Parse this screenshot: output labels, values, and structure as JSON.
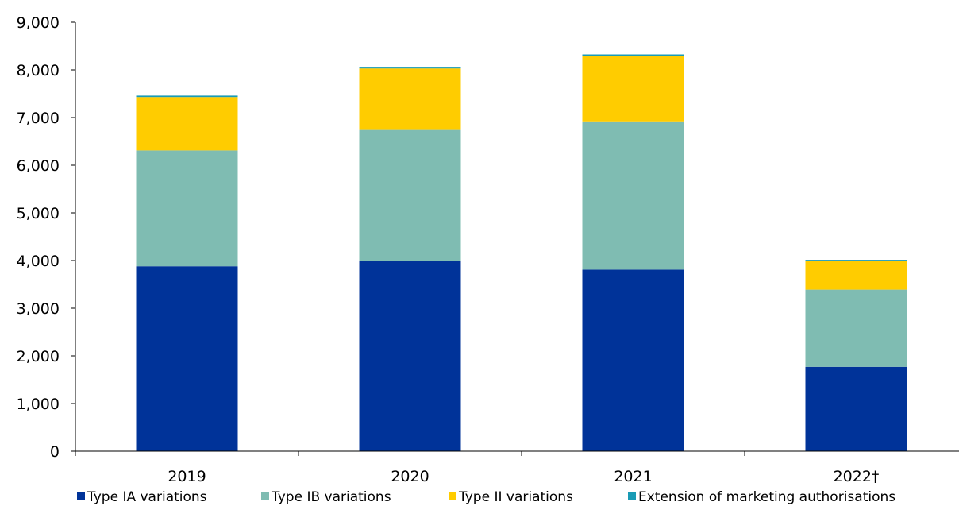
{
  "chart_data": {
    "type": "bar",
    "stacked": true,
    "categories": [
      "2019",
      "2020",
      "2021",
      "2022†"
    ],
    "series": [
      {
        "name": "Type IA variations",
        "color": "#003399",
        "values": [
          3880,
          3990,
          3810,
          1770
        ]
      },
      {
        "name": "Type IB variations",
        "color": "#7fbcb2",
        "values": [
          2430,
          2750,
          3110,
          1620
        ]
      },
      {
        "name": "Type II variations",
        "color": "#ffcc00",
        "values": [
          1120,
          1290,
          1380,
          610
        ]
      },
      {
        "name": "Extension of marketing authorisations",
        "color": "#1a9bb5",
        "values": [
          30,
          35,
          25,
          15
        ]
      }
    ],
    "title": "",
    "xlabel": "",
    "ylabel": "",
    "ylim": [
      0,
      9000
    ],
    "yticks": [
      "0",
      "1,000",
      "2,000",
      "3,000",
      "4,000",
      "5,000",
      "6,000",
      "7,000",
      "8,000",
      "9,000"
    ],
    "grid": false,
    "legend_position": "bottom"
  }
}
